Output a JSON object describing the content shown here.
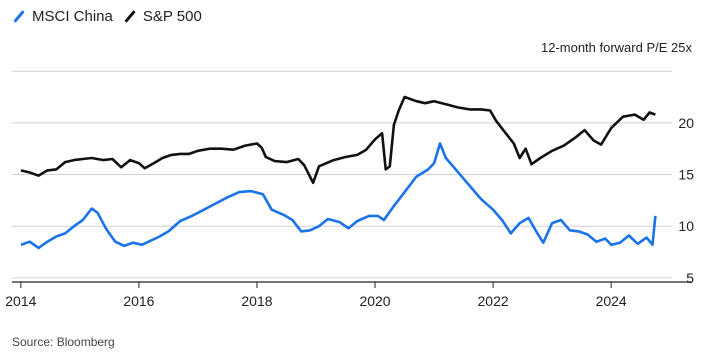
{
  "legend": [
    {
      "name": "MSCI China",
      "color": "#1a73e8"
    },
    {
      "name": "S&P 500",
      "color": "#111111"
    }
  ],
  "unit_label": "12-month forward P/E 25x",
  "source": "Source: Bloomberg",
  "chart_data": {
    "type": "line",
    "title": "",
    "xlabel": "",
    "ylabel": "12-month forward P/E",
    "xlim": [
      2013.85,
      2025.2
    ],
    "ylim": [
      4.6,
      25.6
    ],
    "x_ticks": [
      2014,
      2016,
      2018,
      2020,
      2022,
      2024
    ],
    "y_ticks": [
      5,
      10,
      15,
      20,
      25
    ],
    "y_tick_labels": [
      "5",
      "10",
      "15",
      "20",
      ""
    ],
    "grid": "horizontal",
    "legend_position": "top-left",
    "series": [
      {
        "name": "S&P 500",
        "color": "#111111",
        "points": [
          [
            2014.0,
            15.4
          ],
          [
            2014.15,
            15.2
          ],
          [
            2014.3,
            14.9
          ],
          [
            2014.45,
            15.4
          ],
          [
            2014.6,
            15.5
          ],
          [
            2014.75,
            16.2
          ],
          [
            2014.9,
            16.4
          ],
          [
            2015.05,
            16.5
          ],
          [
            2015.2,
            16.6
          ],
          [
            2015.4,
            16.4
          ],
          [
            2015.55,
            16.5
          ],
          [
            2015.7,
            15.7
          ],
          [
            2015.85,
            16.4
          ],
          [
            2016.0,
            16.1
          ],
          [
            2016.1,
            15.6
          ],
          [
            2016.25,
            16.1
          ],
          [
            2016.4,
            16.6
          ],
          [
            2016.55,
            16.9
          ],
          [
            2016.7,
            17.0
          ],
          [
            2016.85,
            17.0
          ],
          [
            2017.0,
            17.3
          ],
          [
            2017.2,
            17.5
          ],
          [
            2017.4,
            17.5
          ],
          [
            2017.6,
            17.4
          ],
          [
            2017.8,
            17.8
          ],
          [
            2018.0,
            18.0
          ],
          [
            2018.08,
            17.6
          ],
          [
            2018.15,
            16.7
          ],
          [
            2018.3,
            16.3
          ],
          [
            2018.5,
            16.2
          ],
          [
            2018.7,
            16.5
          ],
          [
            2018.8,
            15.9
          ],
          [
            2018.95,
            14.2
          ],
          [
            2019.05,
            15.8
          ],
          [
            2019.3,
            16.4
          ],
          [
            2019.5,
            16.7
          ],
          [
            2019.7,
            16.9
          ],
          [
            2019.85,
            17.4
          ],
          [
            2020.0,
            18.4
          ],
          [
            2020.12,
            19.0
          ],
          [
            2020.18,
            15.5
          ],
          [
            2020.25,
            15.8
          ],
          [
            2020.32,
            19.8
          ],
          [
            2020.4,
            21.2
          ],
          [
            2020.5,
            22.5
          ],
          [
            2020.7,
            22.1
          ],
          [
            2020.85,
            21.9
          ],
          [
            2021.0,
            22.1
          ],
          [
            2021.2,
            21.8
          ],
          [
            2021.4,
            21.5
          ],
          [
            2021.6,
            21.3
          ],
          [
            2021.8,
            21.3
          ],
          [
            2021.95,
            21.2
          ],
          [
            2022.05,
            20.2
          ],
          [
            2022.2,
            19.1
          ],
          [
            2022.35,
            18.0
          ],
          [
            2022.45,
            16.6
          ],
          [
            2022.55,
            17.5
          ],
          [
            2022.65,
            16.0
          ],
          [
            2022.8,
            16.6
          ],
          [
            2023.0,
            17.3
          ],
          [
            2023.2,
            17.8
          ],
          [
            2023.4,
            18.6
          ],
          [
            2023.55,
            19.3
          ],
          [
            2023.7,
            18.3
          ],
          [
            2023.83,
            17.9
          ],
          [
            2024.0,
            19.5
          ],
          [
            2024.2,
            20.6
          ],
          [
            2024.4,
            20.8
          ],
          [
            2024.55,
            20.3
          ],
          [
            2024.65,
            21.0
          ],
          [
            2024.75,
            20.8
          ]
        ]
      },
      {
        "name": "MSCI China",
        "color": "#1a73e8",
        "points": [
          [
            2014.0,
            8.2
          ],
          [
            2014.15,
            8.5
          ],
          [
            2014.3,
            7.9
          ],
          [
            2014.45,
            8.5
          ],
          [
            2014.6,
            9.0
          ],
          [
            2014.75,
            9.3
          ],
          [
            2014.9,
            10.0
          ],
          [
            2015.05,
            10.6
          ],
          [
            2015.2,
            11.7
          ],
          [
            2015.3,
            11.3
          ],
          [
            2015.45,
            9.7
          ],
          [
            2015.6,
            8.5
          ],
          [
            2015.75,
            8.1
          ],
          [
            2015.9,
            8.4
          ],
          [
            2016.05,
            8.2
          ],
          [
            2016.2,
            8.6
          ],
          [
            2016.35,
            9.0
          ],
          [
            2016.5,
            9.5
          ],
          [
            2016.7,
            10.5
          ],
          [
            2016.9,
            11.0
          ],
          [
            2017.1,
            11.6
          ],
          [
            2017.3,
            12.2
          ],
          [
            2017.5,
            12.8
          ],
          [
            2017.7,
            13.3
          ],
          [
            2017.9,
            13.4
          ],
          [
            2018.1,
            13.1
          ],
          [
            2018.25,
            11.6
          ],
          [
            2018.45,
            11.1
          ],
          [
            2018.6,
            10.6
          ],
          [
            2018.75,
            9.5
          ],
          [
            2018.9,
            9.6
          ],
          [
            2019.05,
            10.0
          ],
          [
            2019.2,
            10.7
          ],
          [
            2019.4,
            10.4
          ],
          [
            2019.55,
            9.8
          ],
          [
            2019.7,
            10.5
          ],
          [
            2019.9,
            11.0
          ],
          [
            2020.05,
            11.0
          ],
          [
            2020.15,
            10.6
          ],
          [
            2020.3,
            11.8
          ],
          [
            2020.5,
            13.3
          ],
          [
            2020.7,
            14.8
          ],
          [
            2020.9,
            15.5
          ],
          [
            2021.0,
            16.1
          ],
          [
            2021.1,
            18.0
          ],
          [
            2021.2,
            16.6
          ],
          [
            2021.35,
            15.6
          ],
          [
            2021.5,
            14.6
          ],
          [
            2021.65,
            13.6
          ],
          [
            2021.8,
            12.6
          ],
          [
            2022.0,
            11.6
          ],
          [
            2022.15,
            10.6
          ],
          [
            2022.3,
            9.3
          ],
          [
            2022.45,
            10.3
          ],
          [
            2022.6,
            10.8
          ],
          [
            2022.75,
            9.3
          ],
          [
            2022.85,
            8.4
          ],
          [
            2023.0,
            10.3
          ],
          [
            2023.15,
            10.6
          ],
          [
            2023.3,
            9.6
          ],
          [
            2023.45,
            9.5
          ],
          [
            2023.6,
            9.2
          ],
          [
            2023.75,
            8.5
          ],
          [
            2023.9,
            8.8
          ],
          [
            2024.0,
            8.2
          ],
          [
            2024.15,
            8.4
          ],
          [
            2024.3,
            9.1
          ],
          [
            2024.45,
            8.3
          ],
          [
            2024.6,
            8.9
          ],
          [
            2024.7,
            8.2
          ],
          [
            2024.75,
            11.0
          ]
        ]
      }
    ]
  }
}
